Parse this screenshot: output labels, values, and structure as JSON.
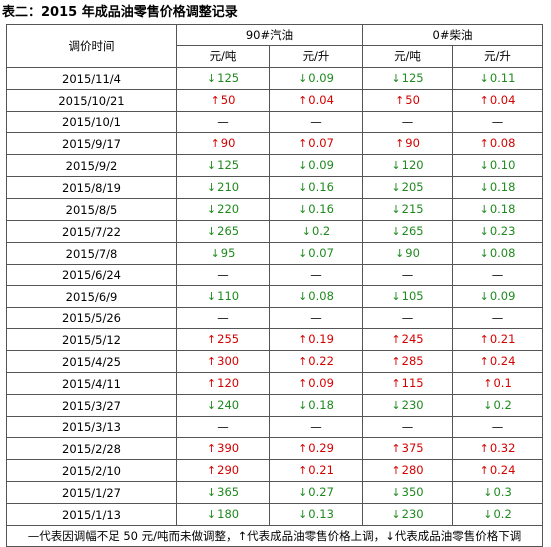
{
  "title": "表二：2015 年成品油零售价格调整记录",
  "header": {
    "time_label": "调价时间",
    "fuel_90": "90#汽油",
    "fuel_0": "0#柴油",
    "unit_ton": "元/吨",
    "unit_liter": "元/升"
  },
  "rows": [
    {
      "date": "2015/11/4",
      "dir": "down",
      "g_ton": "125",
      "g_l": "0.09",
      "d_ton": "125",
      "d_l": "0.11"
    },
    {
      "date": "2015/10/21",
      "dir": "up",
      "g_ton": "50",
      "g_l": "0.04",
      "d_ton": "50",
      "d_l": "0.04"
    },
    {
      "date": "2015/10/1",
      "dir": "none",
      "g_ton": "—",
      "g_l": "—",
      "d_ton": "—",
      "d_l": "—"
    },
    {
      "date": "2015/9/17",
      "dir": "up",
      "g_ton": "90",
      "g_l": "0.07",
      "d_ton": "90",
      "d_l": "0.08"
    },
    {
      "date": "2015/9/2",
      "dir": "down",
      "g_ton": "125",
      "g_l": "0.09",
      "d_ton": "120",
      "d_l": "0.10"
    },
    {
      "date": "2015/8/19",
      "dir": "down",
      "g_ton": "210",
      "g_l": "0.16",
      "d_ton": "205",
      "d_l": "0.18"
    },
    {
      "date": "2015/8/5",
      "dir": "down",
      "g_ton": "220",
      "g_l": "0.16",
      "d_ton": "215",
      "d_l": "0.18"
    },
    {
      "date": "2015/7/22",
      "dir": "down",
      "g_ton": "265",
      "g_l": "0.2",
      "d_ton": "265",
      "d_l": "0.23"
    },
    {
      "date": "2015/7/8",
      "dir": "down",
      "g_ton": "95",
      "g_l": "0.07",
      "d_ton": "90",
      "d_l": "0.08"
    },
    {
      "date": "2015/6/24",
      "dir": "none",
      "g_ton": "—",
      "g_l": "—",
      "d_ton": "—",
      "d_l": "—"
    },
    {
      "date": "2015/6/9",
      "dir": "down",
      "g_ton": "110",
      "g_l": "0.08",
      "d_ton": "105",
      "d_l": "0.09"
    },
    {
      "date": "2015/5/26",
      "dir": "none",
      "g_ton": "—",
      "g_l": "—",
      "d_ton": "—",
      "d_l": "—"
    },
    {
      "date": "2015/5/12",
      "dir": "up",
      "g_ton": "255",
      "g_l": "0.19",
      "d_ton": "245",
      "d_l": "0.21"
    },
    {
      "date": "2015/4/25",
      "dir": "up",
      "g_ton": "300",
      "g_l": "0.22",
      "d_ton": "285",
      "d_l": "0.24"
    },
    {
      "date": "2015/4/11",
      "dir": "up",
      "g_ton": "120",
      "g_l": "0.09",
      "d_ton": "115",
      "d_l": "0.1"
    },
    {
      "date": "2015/3/27",
      "dir": "down",
      "g_ton": "240",
      "g_l": "0.18",
      "d_ton": "230",
      "d_l": "0.2"
    },
    {
      "date": "2015/3/13",
      "dir": "none",
      "g_ton": "—",
      "g_l": "—",
      "d_ton": "—",
      "d_l": "—"
    },
    {
      "date": "2015/2/28",
      "dir": "up",
      "g_ton": "390",
      "g_l": "0.29",
      "d_ton": "375",
      "d_l": "0.32"
    },
    {
      "date": "2015/2/10",
      "dir": "up",
      "g_ton": "290",
      "g_l": "0.21",
      "d_ton": "280",
      "d_l": "0.24"
    },
    {
      "date": "2015/1/27",
      "dir": "down",
      "g_ton": "365",
      "g_l": "0.27",
      "d_ton": "350",
      "d_l": "0.3"
    },
    {
      "date": "2015/1/13",
      "dir": "down",
      "g_ton": "180",
      "g_l": "0.13",
      "d_ton": "230",
      "d_l": "0.2"
    }
  ],
  "arrows": {
    "up": "↑",
    "down": "↓"
  },
  "footnote": "—代表因调幅不足 50 元/吨而未做调整，↑代表成品油零售价格上调，↓代表成品油零售价格下调",
  "colors": {
    "up": "#d40000",
    "down": "#1e8a1e",
    "border": "#555555"
  }
}
